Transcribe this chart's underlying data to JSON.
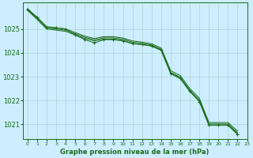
{
  "background_color": "#cceeff",
  "plot_bg_color": "#cceeff",
  "grid_color": "#b0d4d4",
  "line_color": "#1a6b1a",
  "ylim": [
    1020.4,
    1026.1
  ],
  "xlim": [
    -0.5,
    23
  ],
  "yticks": [
    1021,
    1022,
    1023,
    1024,
    1025
  ],
  "xticks": [
    0,
    1,
    2,
    3,
    4,
    5,
    6,
    7,
    8,
    9,
    10,
    11,
    12,
    13,
    14,
    15,
    16,
    17,
    18,
    19,
    20,
    21,
    22,
    23
  ],
  "xlabel": "Graphe pression niveau de la mer (hPa)",
  "band_line1": [
    1025.85,
    1025.5,
    1025.1,
    1025.05,
    1025.0,
    1024.85,
    1024.7,
    1024.6,
    1024.68,
    1024.68,
    1024.62,
    1024.5,
    1024.45,
    1024.38,
    1024.2,
    1023.25,
    1023.05,
    1022.5,
    1022.1,
    1021.08,
    1021.08,
    1021.08,
    1020.72
  ],
  "band_line2": [
    1025.82,
    1025.45,
    1025.05,
    1025.0,
    1024.95,
    1024.8,
    1024.65,
    1024.55,
    1024.63,
    1024.63,
    1024.57,
    1024.45,
    1024.4,
    1024.33,
    1024.15,
    1023.18,
    1022.98,
    1022.43,
    1022.03,
    1021.02,
    1021.02,
    1021.02,
    1020.65
  ],
  "band_line3": [
    1025.78,
    1025.4,
    1025.0,
    1024.95,
    1024.9,
    1024.75,
    1024.6,
    1024.5,
    1024.58,
    1024.58,
    1024.52,
    1024.4,
    1024.35,
    1024.28,
    1024.1,
    1023.12,
    1022.92,
    1022.37,
    1021.97,
    1020.96,
    1020.96,
    1020.96,
    1020.58
  ],
  "marker_line": [
    1025.82,
    1025.48,
    1025.05,
    1025.05,
    1025.0,
    1024.75,
    1024.55,
    1024.42,
    1024.55,
    1024.55,
    1024.5,
    1024.38,
    1024.35,
    1024.3,
    1024.12,
    1023.15,
    1022.95,
    1022.4,
    1021.95,
    1020.98,
    1020.98,
    1020.98,
    1020.6
  ]
}
